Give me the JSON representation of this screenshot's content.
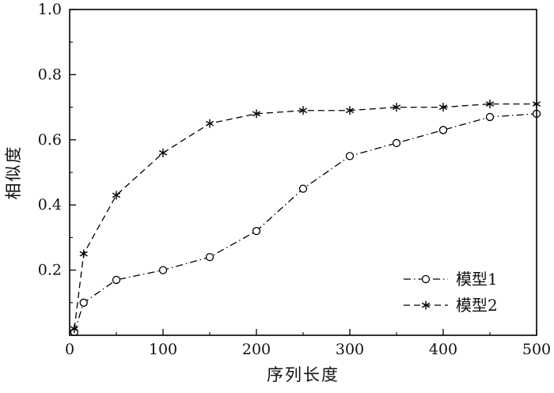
{
  "chart_data": {
    "type": "line",
    "title": "",
    "xlabel": "序列长度",
    "ylabel": "相似度",
    "xlim": [
      0,
      500
    ],
    "ylim": [
      0,
      1.0
    ],
    "x_ticks": {
      "values": [
        0,
        100,
        200,
        300,
        400,
        500
      ],
      "labels": [
        "0",
        "100",
        "200",
        "300",
        "400",
        "500"
      ]
    },
    "y_ticks": {
      "values": [
        0.2,
        0.4,
        0.6,
        0.8,
        1.0
      ],
      "labels": [
        "0.2",
        "0.4",
        "0.6",
        "0.8",
        "1.0"
      ]
    },
    "x_minor_step": 50,
    "y_minor_step": 0.1,
    "grid": false,
    "axis_color": "#000000",
    "x": [
      5,
      15,
      50,
      100,
      150,
      200,
      250,
      300,
      350,
      400,
      450,
      500
    ],
    "series": [
      {
        "name": "模型1",
        "marker": "circle",
        "line_style": "dashdot",
        "color": "#000000",
        "values": [
          0.01,
          0.1,
          0.17,
          0.2,
          0.24,
          0.32,
          0.45,
          0.55,
          0.59,
          0.63,
          0.67,
          0.68
        ]
      },
      {
        "name": "模型2",
        "marker": "asterisk",
        "line_style": "dashed",
        "color": "#000000",
        "values": [
          0.02,
          0.25,
          0.43,
          0.56,
          0.65,
          0.68,
          0.69,
          0.69,
          0.7,
          0.7,
          0.71,
          0.71
        ]
      }
    ],
    "legend_position": "lower right"
  }
}
